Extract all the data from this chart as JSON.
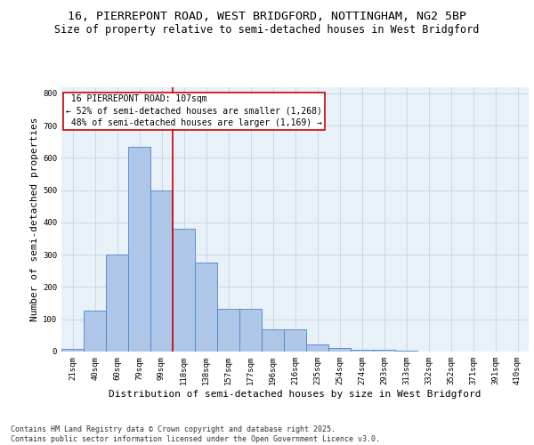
{
  "title_line1": "16, PIERREPONT ROAD, WEST BRIDGFORD, NOTTINGHAM, NG2 5BP",
  "title_line2": "Size of property relative to semi-detached houses in West Bridgford",
  "xlabel": "Distribution of semi-detached houses by size in West Bridgford",
  "ylabel": "Number of semi-detached properties",
  "categories": [
    "21sqm",
    "40sqm",
    "60sqm",
    "79sqm",
    "99sqm",
    "118sqm",
    "138sqm",
    "157sqm",
    "177sqm",
    "196sqm",
    "216sqm",
    "235sqm",
    "254sqm",
    "274sqm",
    "293sqm",
    "313sqm",
    "332sqm",
    "352sqm",
    "371sqm",
    "391sqm",
    "410sqm"
  ],
  "values": [
    8,
    128,
    300,
    635,
    500,
    380,
    275,
    133,
    133,
    68,
    68,
    22,
    10,
    5,
    5,
    2,
    0,
    0,
    0,
    0,
    0
  ],
  "bar_color": "#aec6e8",
  "bar_edge_color": "#4a86c8",
  "property_label": "16 PIERREPONT ROAD: 107sqm",
  "pct_smaller": 52,
  "n_smaller": 1268,
  "pct_larger": 48,
  "n_larger": 1169,
  "vline_x_index": 4.5,
  "annotation_box_color": "#cc0000",
  "grid_color": "#c8d8e8",
  "bg_color": "#e8f0f8",
  "ylim": [
    0,
    820
  ],
  "yticks": [
    0,
    100,
    200,
    300,
    400,
    500,
    600,
    700,
    800
  ],
  "footer": "Contains HM Land Registry data © Crown copyright and database right 2025.\nContains public sector information licensed under the Open Government Licence v3.0.",
  "title_fontsize": 9.5,
  "subtitle_fontsize": 8.5,
  "axis_label_fontsize": 8,
  "tick_fontsize": 6.5,
  "annotation_fontsize": 7,
  "footer_fontsize": 6
}
